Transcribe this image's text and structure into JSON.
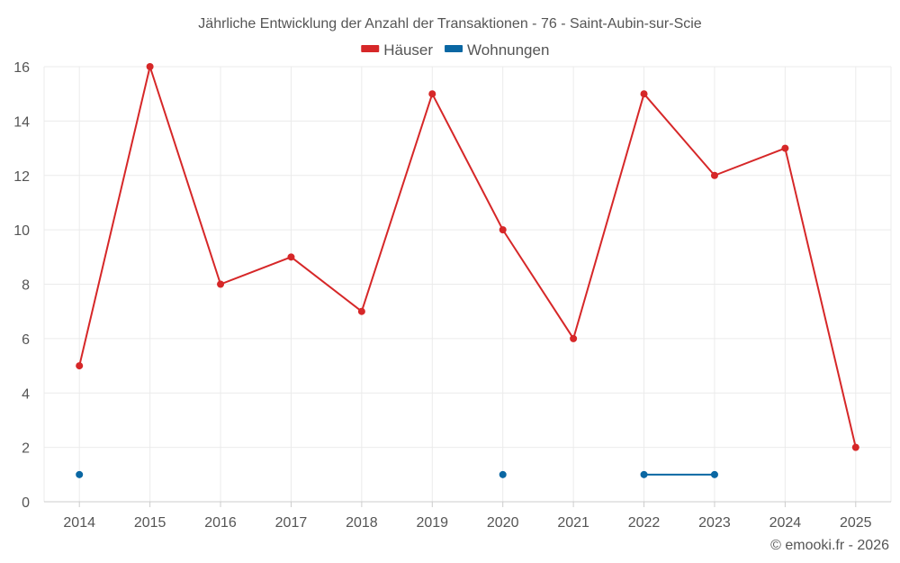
{
  "chart_data": {
    "type": "line",
    "title": "Jährliche Entwicklung der Anzahl der Transaktionen - 76 - Saint-Aubin-sur-Scie",
    "categories": [
      "2014",
      "2015",
      "2016",
      "2017",
      "2018",
      "2019",
      "2020",
      "2021",
      "2022",
      "2023",
      "2024",
      "2025"
    ],
    "series": [
      {
        "name": "Häuser",
        "color": "#d62728",
        "values": [
          5,
          16,
          8,
          9,
          7,
          15,
          10,
          6,
          15,
          12,
          13,
          2
        ]
      },
      {
        "name": "Wohnungen",
        "color": "#0a67a3",
        "values": [
          1,
          null,
          null,
          null,
          null,
          null,
          1,
          null,
          1,
          1,
          null,
          null
        ]
      }
    ],
    "ylim": [
      0,
      16
    ],
    "yticks": [
      0,
      2,
      4,
      6,
      8,
      10,
      12,
      14,
      16
    ],
    "grid": true,
    "legend": "top-center",
    "xlabel": "",
    "ylabel": ""
  },
  "credit": "© emooki.fr - 2026"
}
